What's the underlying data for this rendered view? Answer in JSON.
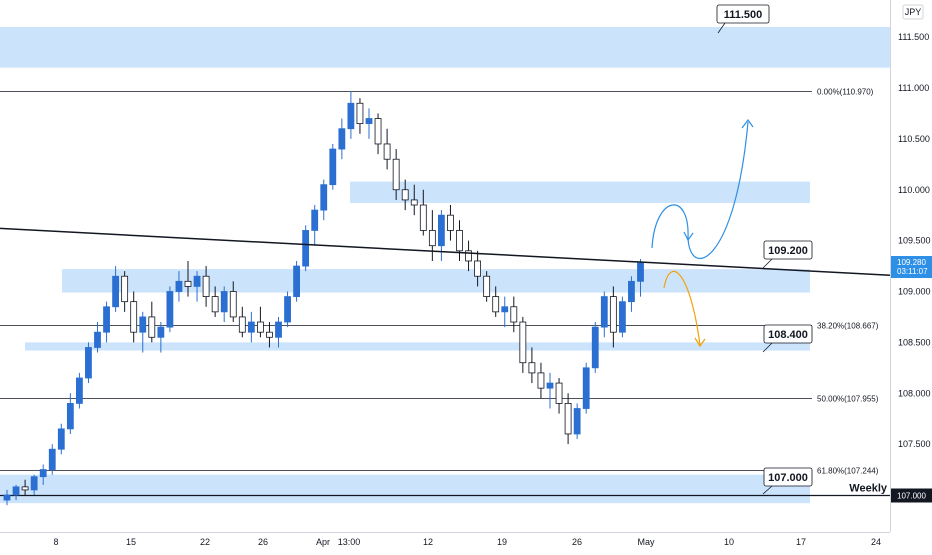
{
  "chart_data": {
    "type": "candlestick",
    "currency": "JPY",
    "y_range": [
      107.0,
      111.7
    ],
    "y_ticks": [
      "111.500",
      "111.000",
      "110.500",
      "110.000",
      "109.500",
      "109.000",
      "108.500",
      "108.000",
      "107.500",
      "107.000"
    ],
    "x_ticks": [
      "8",
      "15",
      "22",
      "26",
      "Apr",
      "13:00",
      "12",
      "19",
      "26",
      "May",
      "10",
      "17",
      "24"
    ],
    "current_price": "109.280",
    "countdown": "03:11:07",
    "fib_levels": [
      {
        "label": "0.00%(110.970)",
        "price": 110.97
      },
      {
        "label": "38.20%(108.667)",
        "price": 108.667
      },
      {
        "label": "50.00%(107.955)",
        "price": 107.955
      },
      {
        "label": "61.80%(107.244)",
        "price": 107.244
      }
    ],
    "weekly_level": {
      "label": "Weekly",
      "price": 107.0,
      "tag": "107.000"
    },
    "zones": [
      {
        "from": 111.2,
        "to": 111.6
      },
      {
        "from": 109.87,
        "to": 110.08
      },
      {
        "from": 108.99,
        "to": 109.22
      },
      {
        "from": 108.42,
        "to": 108.5
      },
      {
        "from": 106.92,
        "to": 107.2
      }
    ],
    "callouts": [
      "111.500",
      "109.200",
      "108.400",
      "107.000"
    ],
    "trendline": {
      "start_price": 109.62,
      "end_price": 109.16
    },
    "scenarios": [
      {
        "name": "bullish",
        "color": "#2e8fe6"
      },
      {
        "name": "bearish",
        "color": "#f2a20c"
      }
    ],
    "ohlc": [
      [
        0,
        106.95,
        107.05,
        106.9,
        107.0
      ],
      [
        1,
        107.0,
        107.1,
        106.95,
        107.08
      ],
      [
        2,
        107.08,
        107.15,
        107.0,
        107.05
      ],
      [
        3,
        107.05,
        107.2,
        107.0,
        107.18
      ],
      [
        4,
        107.18,
        107.3,
        107.1,
        107.25
      ],
      [
        5,
        107.25,
        107.5,
        107.2,
        107.45
      ],
      [
        6,
        107.45,
        107.7,
        107.4,
        107.65
      ],
      [
        7,
        107.65,
        108.0,
        107.6,
        107.9
      ],
      [
        8,
        107.9,
        108.2,
        107.85,
        108.15
      ],
      [
        9,
        108.15,
        108.5,
        108.1,
        108.45
      ],
      [
        10,
        108.45,
        108.7,
        108.4,
        108.6
      ],
      [
        11,
        108.6,
        108.9,
        108.5,
        108.85
      ],
      [
        12,
        108.85,
        109.25,
        108.8,
        109.15
      ],
      [
        13,
        109.15,
        109.2,
        108.8,
        108.9
      ],
      [
        14,
        108.9,
        109.0,
        108.5,
        108.6
      ],
      [
        15,
        108.6,
        108.8,
        108.4,
        108.75
      ],
      [
        16,
        108.75,
        108.9,
        108.5,
        108.55
      ],
      [
        17,
        108.55,
        108.7,
        108.4,
        108.65
      ],
      [
        18,
        108.65,
        109.05,
        108.6,
        109.0
      ],
      [
        19,
        109.0,
        109.2,
        108.9,
        109.1
      ],
      [
        20,
        109.1,
        109.3,
        108.95,
        109.05
      ],
      [
        21,
        109.05,
        109.2,
        108.9,
        109.15
      ],
      [
        22,
        109.15,
        109.25,
        108.85,
        108.95
      ],
      [
        23,
        108.95,
        109.05,
        108.75,
        108.8
      ],
      [
        24,
        108.8,
        109.05,
        108.7,
        109.0
      ],
      [
        25,
        109.0,
        109.1,
        108.7,
        108.75
      ],
      [
        26,
        108.75,
        108.85,
        108.55,
        108.6
      ],
      [
        27,
        108.6,
        108.8,
        108.5,
        108.7
      ],
      [
        28,
        108.7,
        108.85,
        108.55,
        108.6
      ],
      [
        29,
        108.6,
        108.7,
        108.45,
        108.55
      ],
      [
        30,
        108.55,
        108.75,
        108.45,
        108.7
      ],
      [
        31,
        108.7,
        109.0,
        108.65,
        108.95
      ],
      [
        32,
        108.95,
        109.3,
        108.9,
        109.25
      ],
      [
        33,
        109.25,
        109.65,
        109.2,
        109.6
      ],
      [
        34,
        109.6,
        109.85,
        109.45,
        109.8
      ],
      [
        35,
        109.8,
        110.1,
        109.7,
        110.05
      ],
      [
        36,
        110.05,
        110.45,
        110.0,
        110.4
      ],
      [
        37,
        110.4,
        110.7,
        110.3,
        110.6
      ],
      [
        38,
        110.6,
        110.97,
        110.5,
        110.85
      ],
      [
        39,
        110.85,
        110.9,
        110.55,
        110.65
      ],
      [
        40,
        110.65,
        110.8,
        110.5,
        110.7
      ],
      [
        41,
        110.7,
        110.75,
        110.35,
        110.45
      ],
      [
        42,
        110.45,
        110.6,
        110.2,
        110.3
      ],
      [
        43,
        110.3,
        110.4,
        109.9,
        110.0
      ],
      [
        44,
        110.0,
        110.1,
        109.8,
        109.9
      ],
      [
        45,
        109.9,
        110.05,
        109.75,
        109.85
      ],
      [
        46,
        109.85,
        110.0,
        109.55,
        109.6
      ],
      [
        47,
        109.6,
        109.8,
        109.3,
        109.45
      ],
      [
        48,
        109.45,
        109.8,
        109.3,
        109.75
      ],
      [
        49,
        109.75,
        109.85,
        109.5,
        109.6
      ],
      [
        50,
        109.6,
        109.7,
        109.3,
        109.4
      ],
      [
        51,
        109.4,
        109.5,
        109.2,
        109.3
      ],
      [
        52,
        109.3,
        109.4,
        109.05,
        109.15
      ],
      [
        53,
        109.15,
        109.2,
        108.9,
        108.95
      ],
      [
        54,
        108.95,
        109.05,
        108.75,
        108.8
      ],
      [
        55,
        108.8,
        108.95,
        108.65,
        108.85
      ],
      [
        56,
        108.85,
        108.95,
        108.6,
        108.7
      ],
      [
        57,
        108.7,
        108.75,
        108.2,
        108.3
      ],
      [
        58,
        108.3,
        108.45,
        108.1,
        108.2
      ],
      [
        59,
        108.2,
        108.3,
        107.95,
        108.05
      ],
      [
        60,
        108.05,
        108.2,
        107.85,
        108.1
      ],
      [
        61,
        108.1,
        108.15,
        107.8,
        107.9
      ],
      [
        62,
        107.9,
        108.0,
        107.5,
        107.6
      ],
      [
        63,
        107.6,
        107.9,
        107.55,
        107.85
      ],
      [
        64,
        107.85,
        108.3,
        107.8,
        108.25
      ],
      [
        65,
        108.25,
        108.7,
        108.2,
        108.65
      ],
      [
        66,
        108.65,
        109.0,
        108.55,
        108.95
      ],
      [
        67,
        108.95,
        109.05,
        108.45,
        108.6
      ],
      [
        68,
        108.6,
        108.95,
        108.55,
        108.9
      ],
      [
        69,
        108.9,
        109.15,
        108.8,
        109.1
      ],
      [
        70,
        109.1,
        109.32,
        108.95,
        109.28
      ]
    ]
  }
}
